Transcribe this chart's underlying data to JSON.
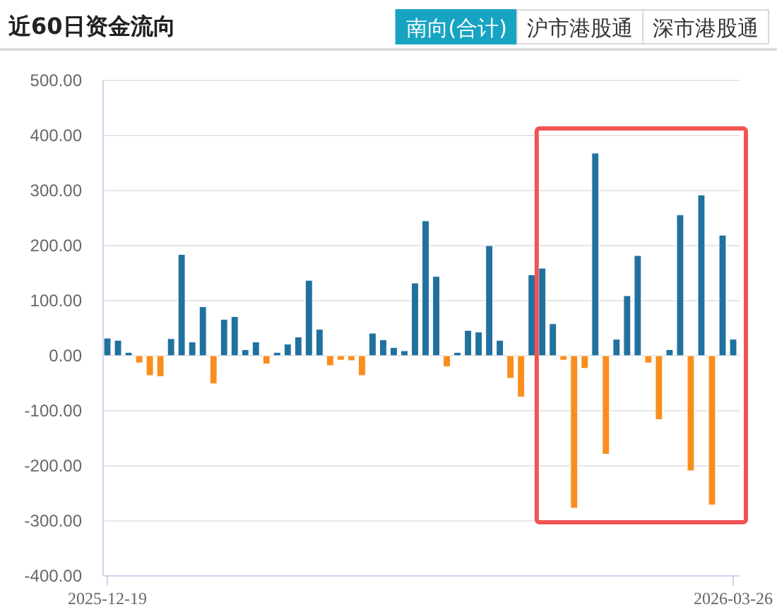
{
  "chart_data": {
    "type": "bar",
    "title": "近60日资金流向",
    "annotations": [
      "南向(合计)",
      "沪市港股通",
      "深市港股通"
    ],
    "categories": [
      "2025-12-19",
      null,
      null,
      null,
      null,
      null,
      null,
      null,
      null,
      null,
      null,
      null,
      null,
      null,
      null,
      null,
      null,
      null,
      null,
      null,
      null,
      null,
      null,
      null,
      null,
      null,
      null,
      null,
      null,
      null,
      null,
      null,
      null,
      null,
      null,
      null,
      null,
      null,
      null,
      null,
      null,
      null,
      null,
      null,
      null,
      null,
      null,
      null,
      null,
      null,
      null,
      null,
      null,
      null,
      null,
      null,
      null,
      null,
      null,
      "2026-03-26"
    ],
    "values": [
      32,
      28,
      6,
      -13,
      -36,
      -38,
      31,
      184,
      25,
      89,
      -51,
      66,
      71,
      11,
      25,
      -15,
      6,
      21,
      34,
      137,
      48,
      -18,
      -8,
      -9,
      -36,
      41,
      29,
      15,
      9,
      132,
      245,
      144,
      -20,
      6,
      46,
      43,
      200,
      28,
      -41,
      -75,
      147,
      159,
      58,
      -8,
      -277,
      -23,
      368,
      -179,
      30,
      109,
      182,
      -13,
      -116,
      11,
      256,
      -209,
      292,
      -271,
      219,
      30
    ],
    "colors": [
      "#21719f",
      "#21719f",
      "#21719f",
      "#f98e1d",
      "#f98e1d",
      "#f98e1d",
      "#21719f",
      "#21719f",
      "#21719f",
      "#21719f",
      "#f98e1d",
      "#21719f",
      "#21719f",
      "#21719f",
      "#21719f",
      "#f98e1d",
      "#21719f",
      "#21719f",
      "#21719f",
      "#21719f",
      "#21719f",
      "#f98e1d",
      "#f98e1d",
      "#f98e1d",
      "#f98e1d",
      "#21719f",
      "#21719f",
      "#21719f",
      "#21719f",
      "#21719f",
      "#21719f",
      "#21719f",
      "#f98e1d",
      "#21719f",
      "#21719f",
      "#21719f",
      "#21719f",
      "#21719f",
      "#f98e1d",
      "#f98e1d",
      "#21719f",
      "#21719f",
      "#21719f",
      "#f98e1d",
      "#f98e1d",
      "#f98e1d",
      "#21719f",
      "#f98e1d",
      "#21719f",
      "#21719f",
      "#21719f",
      "#f98e1d",
      "#f98e1d",
      "#21719f",
      "#21719f",
      "#f98e1d",
      "#21719f",
      "#f98e1d",
      "#21719f",
      "#21719f"
    ],
    "ylim": [
      -400,
      500
    ],
    "yticks": [
      {
        "value": 500,
        "label": "500.00"
      },
      {
        "value": 400,
        "label": "400.00"
      },
      {
        "value": 300,
        "label": "300.00"
      },
      {
        "value": 200,
        "label": "200.00"
      },
      {
        "value": 100,
        "label": "100.00"
      },
      {
        "value": 0,
        "label": "0.00"
      },
      {
        "value": -100,
        "label": "-100.00"
      },
      {
        "value": -200,
        "label": "-200.00"
      },
      {
        "value": -300,
        "label": "-300.00"
      },
      {
        "value": -400,
        "label": "-400.00"
      }
    ],
    "grid": "y"
  }
}
